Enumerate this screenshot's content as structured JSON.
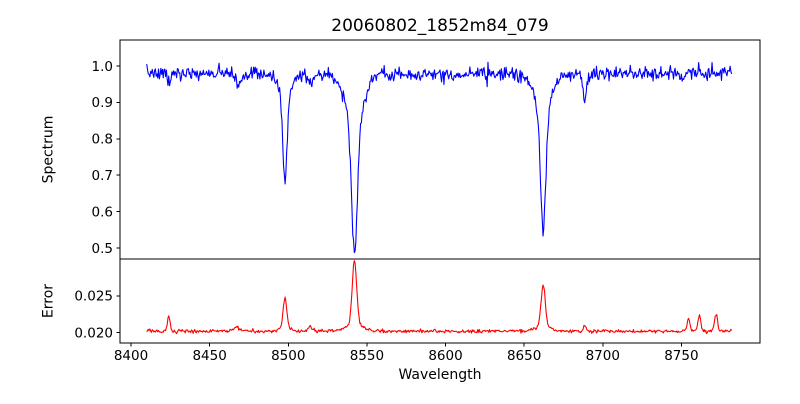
{
  "figure": {
    "background_color": "#ffffff",
    "frame_color": "#000000",
    "text_color": "#000000"
  },
  "chart_data": {
    "type": "line",
    "title": "20060802_1852m84_079",
    "xlabel": "Wavelength",
    "legend": "none",
    "grid": "off",
    "x_axis": {
      "lim": [
        8393,
        8800
      ],
      "tick_values": [
        8400,
        8450,
        8500,
        8550,
        8600,
        8650,
        8700,
        8750
      ],
      "tick_labels": [
        "8400",
        "8450",
        "8500",
        "8550",
        "8600",
        "8650",
        "8700",
        "8750"
      ],
      "data_range": [
        8410,
        8782
      ],
      "sample_step": 0.5
    },
    "panels": [
      {
        "name": "spectrum",
        "ylabel": "Spectrum",
        "ylim": [
          0.4697,
          1.0714
        ],
        "tick_values": [
          0.5,
          0.6,
          0.7,
          0.8,
          0.9,
          1.0
        ],
        "tick_labels": [
          "0.5",
          "0.6",
          "0.7",
          "0.8",
          "0.9",
          "1.0"
        ],
        "line_color": "#0000ff",
        "model": {
          "kind": "absorption",
          "continuum": 0.979,
          "noise_sigma": 0.0095,
          "noise_seed": 7,
          "absorption_lines": [
            {
              "center": 8424.0,
              "depth": 0.025,
              "sigma": 1.0
            },
            {
              "center": 8468.5,
              "depth": 0.032,
              "sigma": 1.4
            },
            {
              "center": 8497.9,
              "depth": 0.24,
              "sigma": 1.4,
              "wing_depth": 0.05,
              "wing_sigma": 4.5
            },
            {
              "center": 8514.0,
              "depth": 0.03,
              "sigma": 1.2
            },
            {
              "center": 8542.1,
              "depth": 0.36,
              "sigma": 1.8,
              "wing_depth": 0.13,
              "wing_sigma": 6.0
            },
            {
              "center": 8662.1,
              "depth": 0.33,
              "sigma": 1.7,
              "wing_depth": 0.092,
              "wing_sigma": 5.5
            },
            {
              "center": 8688.6,
              "depth": 0.075,
              "sigma": 1.1
            },
            {
              "center": 8751.0,
              "depth": 0.02,
              "sigma": 1.0
            }
          ]
        }
      },
      {
        "name": "error",
        "ylabel": "Error",
        "ylim": [
          0.0186,
          0.03
        ],
        "tick_values": [
          0.02,
          0.025
        ],
        "tick_labels": [
          "0.020",
          "0.025"
        ],
        "line_color": "#ff0000",
        "model": {
          "kind": "emission",
          "baseline": 0.0202,
          "noise_sigma": 0.00012,
          "noise_seed": 13,
          "peaks": [
            {
              "center": 8424.0,
              "height": 0.0018,
              "sigma": 0.9
            },
            {
              "center": 8467.0,
              "height": 0.0006,
              "sigma": 1.5
            },
            {
              "center": 8497.9,
              "height": 0.004,
              "sigma": 1.1,
              "wing_height": 0.0006,
              "wing_sigma": 3.0
            },
            {
              "center": 8514.0,
              "height": 0.0008,
              "sigma": 1.2
            },
            {
              "center": 8542.1,
              "height": 0.0085,
              "sigma": 1.4,
              "wing_height": 0.001,
              "wing_sigma": 5.0
            },
            {
              "center": 8662.1,
              "height": 0.0055,
              "sigma": 1.3,
              "wing_height": 0.0008,
              "wing_sigma": 4.0
            },
            {
              "center": 8688.6,
              "height": 0.0008,
              "sigma": 1.0
            },
            {
              "center": 8754.5,
              "height": 0.0018,
              "sigma": 0.9
            },
            {
              "center": 8761.5,
              "height": 0.0022,
              "sigma": 0.9
            },
            {
              "center": 8772.0,
              "height": 0.0022,
              "sigma": 1.0
            }
          ]
        }
      }
    ]
  }
}
